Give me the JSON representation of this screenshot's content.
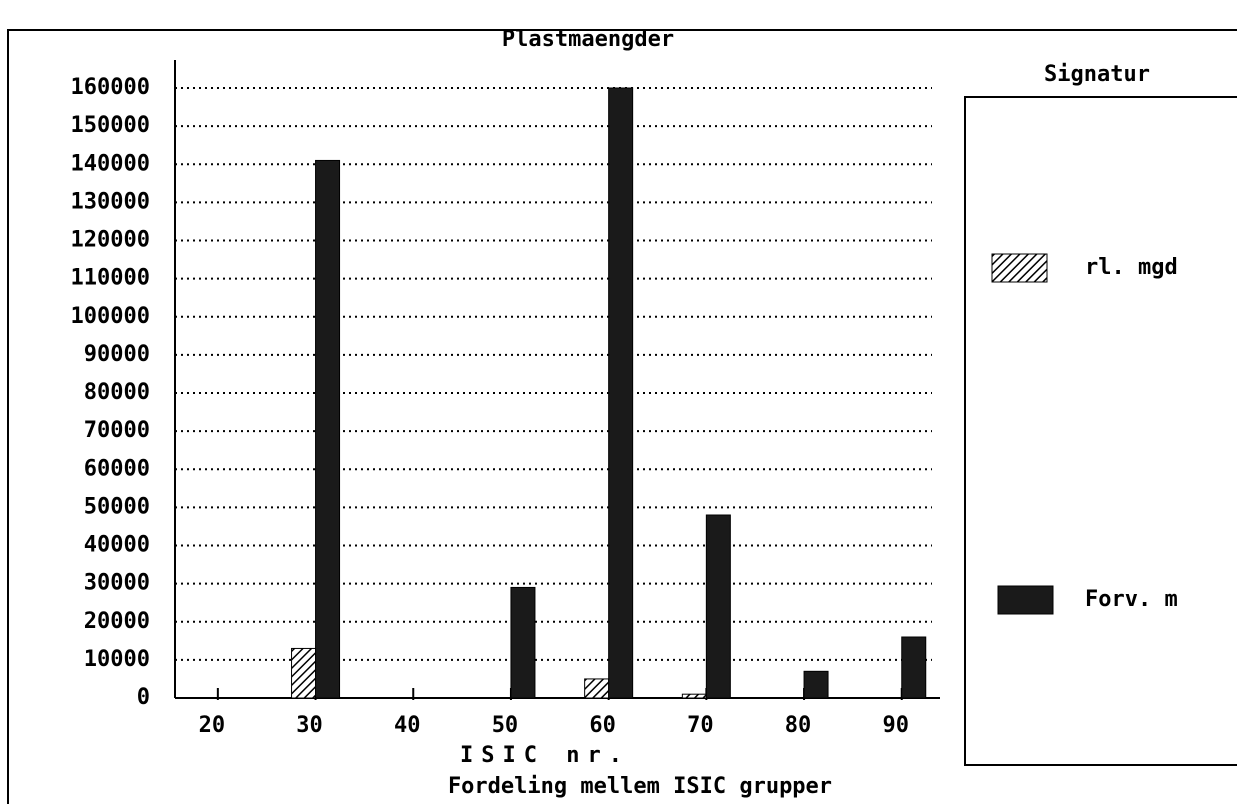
{
  "chart_data": {
    "type": "bar",
    "title": "Plastmaengder",
    "x_label": "ISIC nr.",
    "subtitle": "Fordeling mellem ISIC grupper",
    "legend_title": "Signatur",
    "categories": [
      "20",
      "30",
      "40",
      "50",
      "60",
      "70",
      "80",
      "90"
    ],
    "series": [
      {
        "name": "rl. mgd",
        "color": "#000000",
        "pattern": "hatch",
        "values": [
          0,
          13000,
          0,
          0,
          5000,
          1000,
          0,
          0
        ]
      },
      {
        "name": "Forv. m",
        "color": "#1a1a1a",
        "values": [
          0,
          141000,
          0,
          29000,
          160000,
          48000,
          7000,
          16000
        ]
      }
    ],
    "ylim": [
      0,
      160000
    ],
    "yticks": [
      0,
      10000,
      20000,
      30000,
      40000,
      50000,
      60000,
      70000,
      80000,
      90000,
      100000,
      110000,
      120000,
      130000,
      140000,
      150000,
      160000
    ],
    "grid": true,
    "legend": "right"
  }
}
